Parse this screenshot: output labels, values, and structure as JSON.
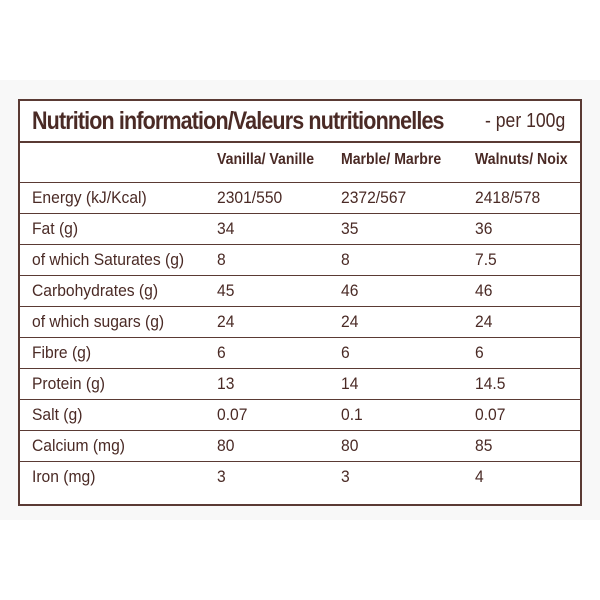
{
  "label": {
    "title": "Nutrition information/Valeurs nutritionnelles",
    "title_suffix": "- per 100g",
    "columns": [
      "Vanilla/ Vanille",
      "Marble/ Marbre",
      "Walnuts/ Noix"
    ],
    "rows": [
      {
        "name": "Energy (kJ/Kcal)",
        "values": [
          "2301/550",
          "2372/567",
          "2418/578"
        ]
      },
      {
        "name": "Fat (g)",
        "values": [
          "34",
          "35",
          "36"
        ]
      },
      {
        "name": "of which Saturates (g)",
        "values": [
          "8",
          "8",
          "7.5"
        ]
      },
      {
        "name": "Carbohydrates (g)",
        "values": [
          "45",
          "46",
          "46"
        ]
      },
      {
        "name": "of which sugars (g)",
        "values": [
          "24",
          "24",
          "24"
        ]
      },
      {
        "name": "Fibre (g)",
        "values": [
          "6",
          "6",
          "6"
        ]
      },
      {
        "name": "Protein (g)",
        "values": [
          "13",
          "14",
          "14.5"
        ]
      },
      {
        "name": "Salt (g)",
        "values": [
          "0.07",
          "0.1",
          "0.07"
        ]
      },
      {
        "name": "Calcium (mg)",
        "values": [
          "80",
          "80",
          "85"
        ]
      },
      {
        "name": "Iron (mg)",
        "values": [
          "3",
          "3",
          "4"
        ]
      }
    ],
    "colors": {
      "text": "#4a2a25",
      "border": "#5a3a34",
      "background": "#ffffff"
    }
  }
}
